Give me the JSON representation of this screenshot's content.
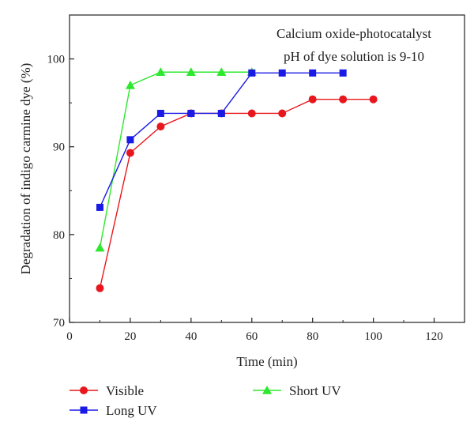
{
  "chart_data": {
    "type": "line",
    "title": "",
    "xlabel": "Time (min)",
    "ylabel": "Degradation of indigo carmine dye (%)",
    "xlim": [
      0,
      130
    ],
    "ylim": [
      70,
      105
    ],
    "xticks": [
      0,
      20,
      40,
      60,
      80,
      100,
      120
    ],
    "yticks": [
      70,
      80,
      90,
      100
    ],
    "grid": false,
    "legend_position": "bottom",
    "annotations": [
      "Calcium oxide-photocatalyst",
      "pH of dye solution is 9-10"
    ],
    "series": [
      {
        "name": "Visible",
        "color": "#e8171d",
        "marker": "circle",
        "x": [
          10,
          20,
          30,
          40,
          50,
          60,
          70,
          80,
          90,
          100
        ],
        "y": [
          73.9,
          89.3,
          92.3,
          93.8,
          93.8,
          93.8,
          93.8,
          95.4,
          95.4,
          95.4
        ]
      },
      {
        "name": "Short UV",
        "color": "#2ee82e",
        "marker": "triangle",
        "x": [
          10,
          20,
          30,
          40,
          50,
          60
        ],
        "y": [
          78.5,
          97.0,
          98.5,
          98.5,
          98.5,
          98.5
        ]
      },
      {
        "name": "Long UV",
        "color": "#1a1ae6",
        "marker": "square",
        "x": [
          10,
          20,
          30,
          40,
          50,
          60,
          70,
          80,
          90
        ],
        "y": [
          83.1,
          90.8,
          93.8,
          93.8,
          93.8,
          98.4,
          98.4,
          98.4,
          98.4
        ]
      }
    ]
  }
}
